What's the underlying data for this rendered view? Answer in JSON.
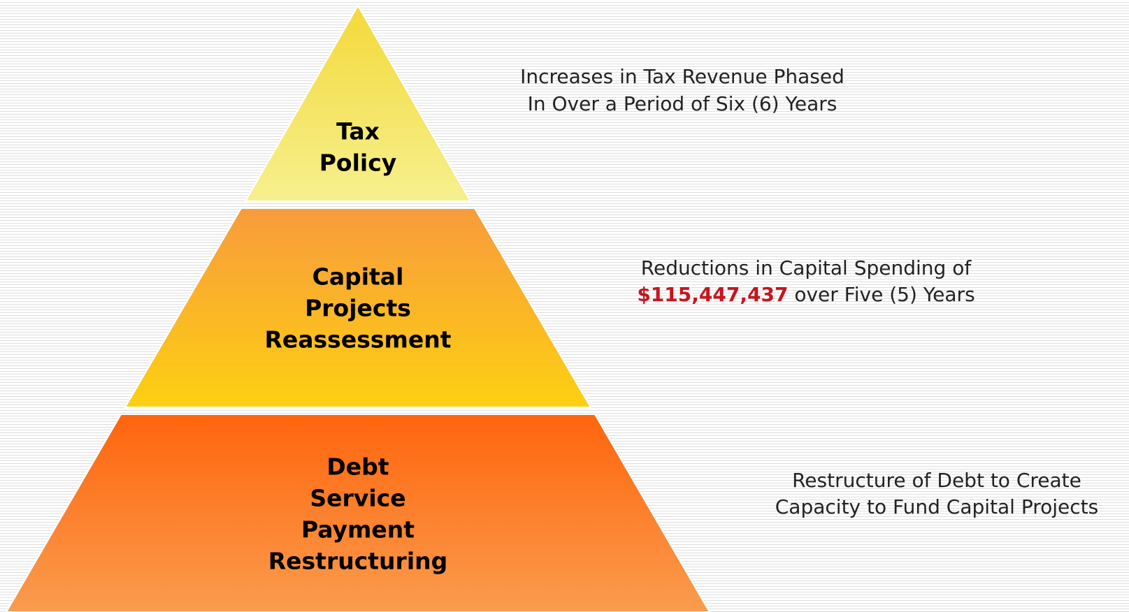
{
  "tiers": [
    {
      "label": [
        "Tax",
        "Policy"
      ],
      "description": [
        "Increases in Tax Revenue Phased",
        "In Over a Period of Six (6) Years"
      ]
    },
    {
      "label": [
        "Capital",
        "Projects",
        "Reassessment"
      ],
      "description": [
        "Reductions in Capital Spending of"
      ],
      "highlight": "$115,447,437",
      "description_rest": "over Five (5) Years"
    },
    {
      "label": [
        "Debt",
        "Service",
        "Payment",
        "Restructuring"
      ],
      "description": [
        "Restructure of Debt to Create",
        "Capacity to Fund Capital Projects"
      ]
    }
  ]
}
